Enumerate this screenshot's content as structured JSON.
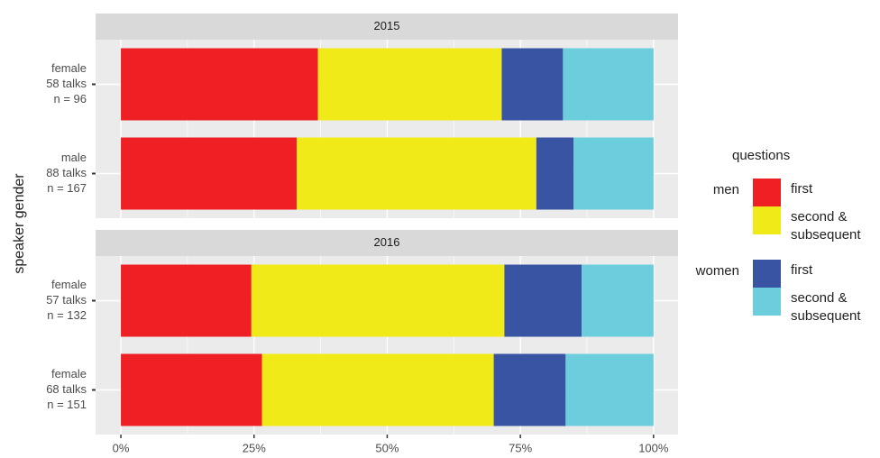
{
  "chart_data": {
    "type": "bar",
    "orientation": "horizontal",
    "y_label": "speaker gender",
    "xlim": [
      -4.75,
      104.6
    ],
    "xticks": [
      {
        "value": 0,
        "label": "0%"
      },
      {
        "value": 25,
        "label": "25%"
      },
      {
        "value": 50,
        "label": "50%"
      },
      {
        "value": 75,
        "label": "75%"
      },
      {
        "value": 100,
        "label": "100%"
      }
    ],
    "grid": true,
    "legend_title": "questions",
    "legend_groups": [
      "men",
      "women"
    ],
    "series": [
      {
        "name": "first",
        "group": 0,
        "color": "#ee2024"
      },
      {
        "name": "second & subsequent",
        "group": 0,
        "color": "#f1ea19"
      },
      {
        "name": "first",
        "group": 1,
        "color": "#3a54a4"
      },
      {
        "name": "second & subsequent",
        "group": 1,
        "color": "#6ccddc"
      }
    ],
    "facets": [
      {
        "title": "2015",
        "categories": [
          [
            "female",
            "58 talks",
            "n = 96"
          ],
          [
            "male",
            "88 talks",
            "n = 167"
          ]
        ],
        "values": [
          [
            37,
            33
          ],
          [
            34.5,
            45
          ],
          [
            11.5,
            7
          ],
          [
            17,
            15
          ]
        ]
      },
      {
        "title": "2016",
        "categories": [
          [
            "female",
            "57 talks",
            "n = 132"
          ],
          [
            "female",
            "68 talks",
            "n = 151"
          ]
        ],
        "values": [
          [
            24.5,
            26.5
          ],
          [
            47.5,
            43.5
          ],
          [
            14.5,
            13.5
          ],
          [
            13.5,
            16.5
          ]
        ]
      }
    ]
  }
}
